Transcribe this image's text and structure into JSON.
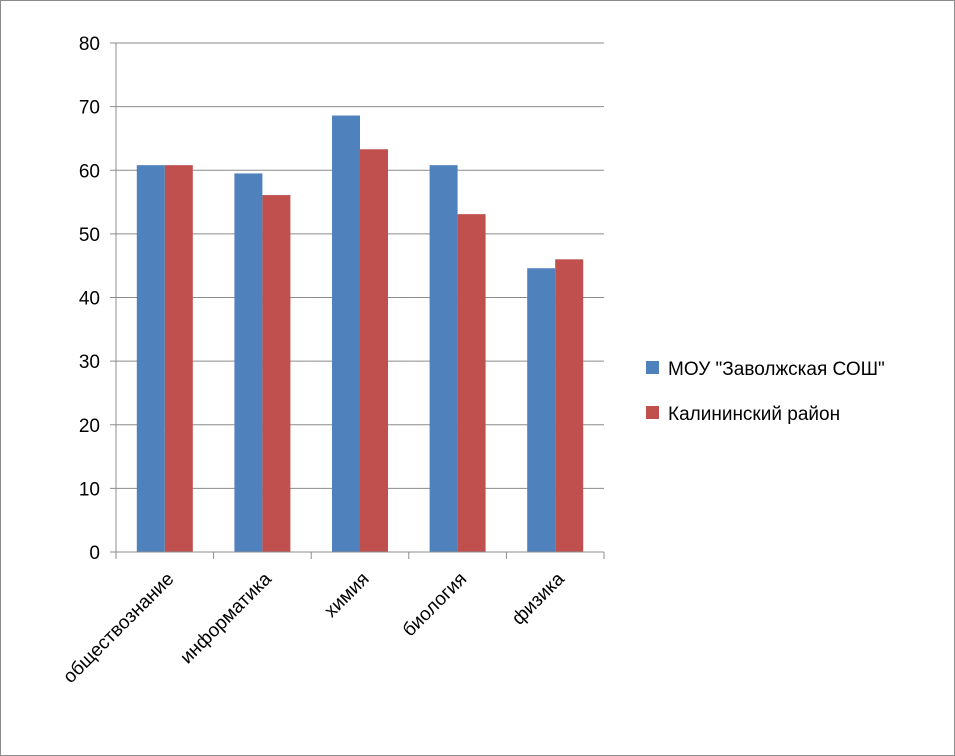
{
  "chart_data": {
    "type": "bar",
    "title": "",
    "xlabel": "",
    "ylabel": "",
    "categories": [
      "обществознание",
      "информатика",
      "химия",
      "биология",
      "физика"
    ],
    "series": [
      {
        "name": "МОУ \"Заволжская СОШ\"",
        "color": "#4f81bd",
        "values": [
          60.8,
          59.5,
          68.6,
          60.8,
          44.6
        ]
      },
      {
        "name": "Калининский район",
        "color": "#c0504d",
        "values": [
          60.8,
          56.1,
          63.3,
          53.1,
          46.0
        ]
      }
    ],
    "ylim": [
      0,
      80
    ],
    "yticks": [
      0,
      10,
      20,
      30,
      40,
      50,
      60,
      70,
      80
    ],
    "grid": true,
    "legend_position": "right"
  }
}
